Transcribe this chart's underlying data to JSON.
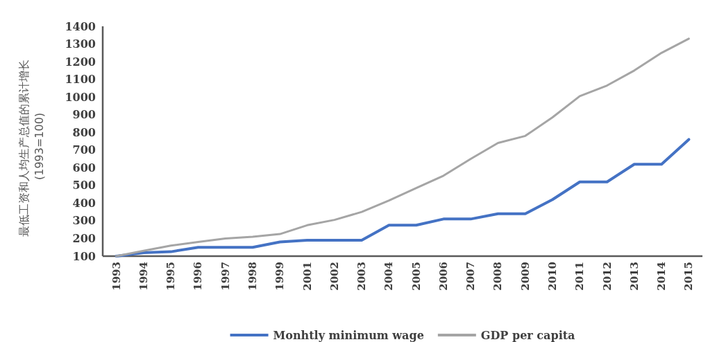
{
  "chart_data": {
    "type": "line",
    "ylabel": "最低工资和人均生产总值的累计增长 (1993=100)",
    "categories": [
      "1993",
      "1994",
      "1995",
      "1996",
      "1997",
      "1998",
      "1999",
      "2001",
      "2002",
      "2003",
      "2004",
      "2005",
      "2006",
      "2007",
      "2008",
      "2009",
      "2010",
      "2011",
      "2012",
      "2013",
      "2014",
      "2015"
    ],
    "series": [
      {
        "name": "Monhtly minimum wage",
        "color": "#4472c4",
        "values": [
          100,
          120,
          125,
          150,
          150,
          150,
          180,
          190,
          190,
          190,
          275,
          275,
          310,
          310,
          340,
          340,
          420,
          520,
          520,
          620,
          620,
          760
        ]
      },
      {
        "name": "GDP per capita",
        "color": "#a5a5a5",
        "values": [
          100,
          130,
          160,
          180,
          200,
          210,
          225,
          275,
          305,
          350,
          415,
          485,
          555,
          650,
          740,
          780,
          885,
          1005,
          1065,
          1150,
          1250,
          1330
        ]
      }
    ],
    "ylim": [
      100,
      1400
    ],
    "yticks": [
      100,
      200,
      300,
      400,
      500,
      600,
      700,
      800,
      900,
      1000,
      1100,
      1200,
      1300,
      1400
    ],
    "grid": false,
    "legend": "bottom",
    "marker": "none",
    "line_style": "solid"
  }
}
